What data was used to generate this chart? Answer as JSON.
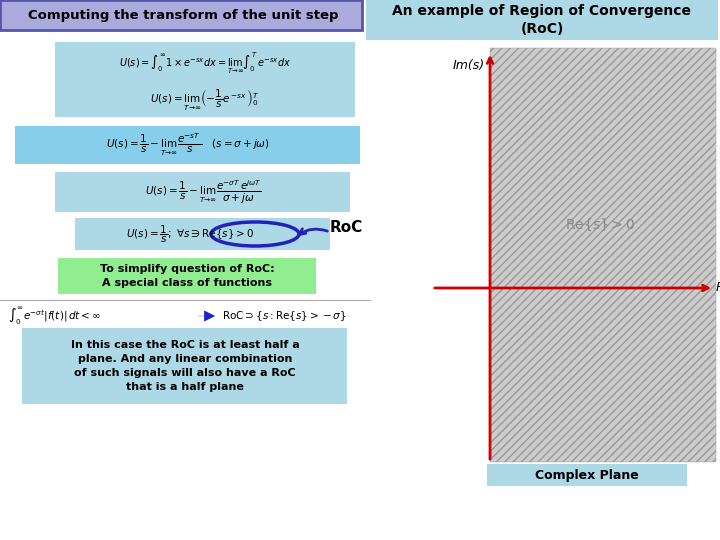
{
  "title_left": "Computing the transform of the unit step",
  "title_right": "An example of Region of Convergence\n(RoC)",
  "title_left_bg": "#aaaadd",
  "title_left_edge": "#5555aa",
  "title_right_bg": "#add8e6",
  "bg_color": "#ffffff",
  "eq_box_color1": "#add8e6",
  "eq_box_color2": "#90ee90",
  "eq1": "$U(s) = \\int_0^{\\infty} 1 \\times e^{-sx}dx = \\lim_{T\\to\\infty}\\int_0^{T} e^{-sx}dx$",
  "eq2": "$U(s) = \\lim_{T\\to\\infty}\\left(-\\dfrac{1}{s}e^{\\,-sx}\\right)_0^{T}$",
  "eq3": "$U(s) = \\dfrac{1}{s} - \\lim_{T\\to\\infty}\\dfrac{e^{-sT}}{s} \\quad (s = \\sigma + j\\omega)$",
  "eq4": "$U(s) = \\dfrac{1}{s} - \\lim_{T\\to\\infty}\\dfrac{e^{-\\sigma T}e^{j\\omega T}}{\\sigma + j\\omega}$",
  "eq5": "$U(s) = \\dfrac{1}{s};\\; \\forall s \\ni \\mathrm{Re}\\{s\\} > 0$",
  "eq6": "$\\int_0^{\\infty} e^{-\\sigma t}|f(t)|\\, dt < \\infty$",
  "eq6b": "$\\mathrm{RoC} \\supset \\{s: \\mathrm{Re}\\{s\\} > -\\sigma\\}$",
  "roc_label": "RoC",
  "simplify_text": "To simplify question of RoC:\nA special class of functions",
  "bottom_text": "In this case the RoC is at least half a\nplane. And any linear combination\nof such signals will also have a RoC\nthat is a half plane",
  "roc_region_text": "Re{s} > 0",
  "im_label": "Im(s)",
  "re_label": "Re(s)",
  "complex_plane_label": "Complex Plane",
  "axis_color": "#cc0000",
  "oval_color": "#2222bb",
  "arrow_color": "#2222cc"
}
